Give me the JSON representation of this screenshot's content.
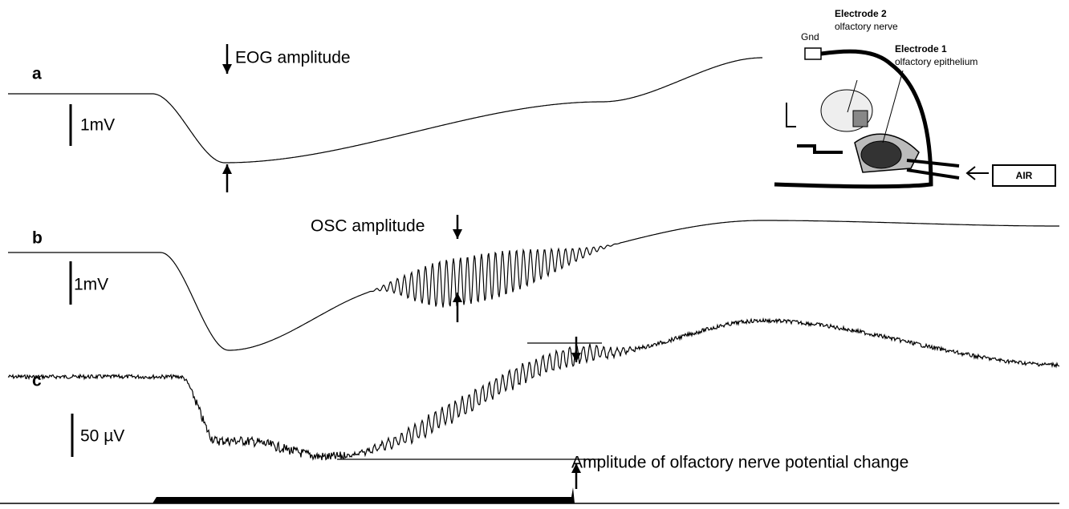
{
  "panels": {
    "a": {
      "label": "a",
      "annotation": "EOG amplitude",
      "scale": "1mV"
    },
    "b": {
      "label": "b",
      "annotation": "OSC amplitude",
      "scale": "1mV"
    },
    "c": {
      "label": "c",
      "annotation": "Amplitude of olfactory nerve potential change",
      "scale": "50 µV"
    }
  },
  "inset": {
    "ground": "Gnd",
    "electrode2": {
      "title": "Electrode 2",
      "site": "olfactory nerve"
    },
    "electrode1": {
      "title": "Electrode 1",
      "site": "olfactory epithelium"
    },
    "air": "AIR"
  }
}
